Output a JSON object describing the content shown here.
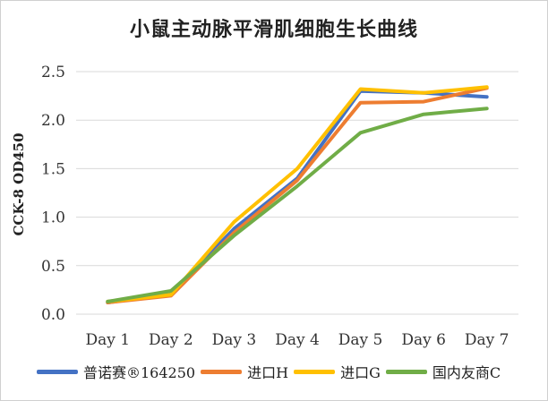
{
  "chart_data": {
    "type": "line",
    "title": "小鼠主动脉平滑肌细胞生长曲线",
    "xlabel": "",
    "ylabel": "CCK-8  OD450",
    "categories": [
      "Day 1",
      "Day 2",
      "Day 3",
      "Day 4",
      "Day 5",
      "Day 6",
      "Day 7"
    ],
    "ylim": [
      0,
      2.5
    ],
    "yticks": [
      "0.0",
      "0.5",
      "1.0",
      "1.5",
      "2.0",
      "2.5"
    ],
    "grid": true,
    "legend_position": "bottom",
    "series": [
      {
        "name": "普诺赛®164250",
        "color": "#4472C4",
        "values": [
          0.12,
          0.21,
          0.88,
          1.4,
          2.3,
          2.28,
          2.24
        ]
      },
      {
        "name": "进口H",
        "color": "#ED7D31",
        "values": [
          0.12,
          0.19,
          0.84,
          1.38,
          2.18,
          2.19,
          2.33
        ]
      },
      {
        "name": "进口G",
        "color": "#FFC000",
        "values": [
          0.13,
          0.2,
          0.95,
          1.5,
          2.32,
          2.28,
          2.34
        ]
      },
      {
        "name": "国内友商C",
        "color": "#70AD47",
        "values": [
          0.13,
          0.24,
          0.81,
          1.32,
          1.87,
          2.06,
          2.12
        ]
      }
    ]
  }
}
